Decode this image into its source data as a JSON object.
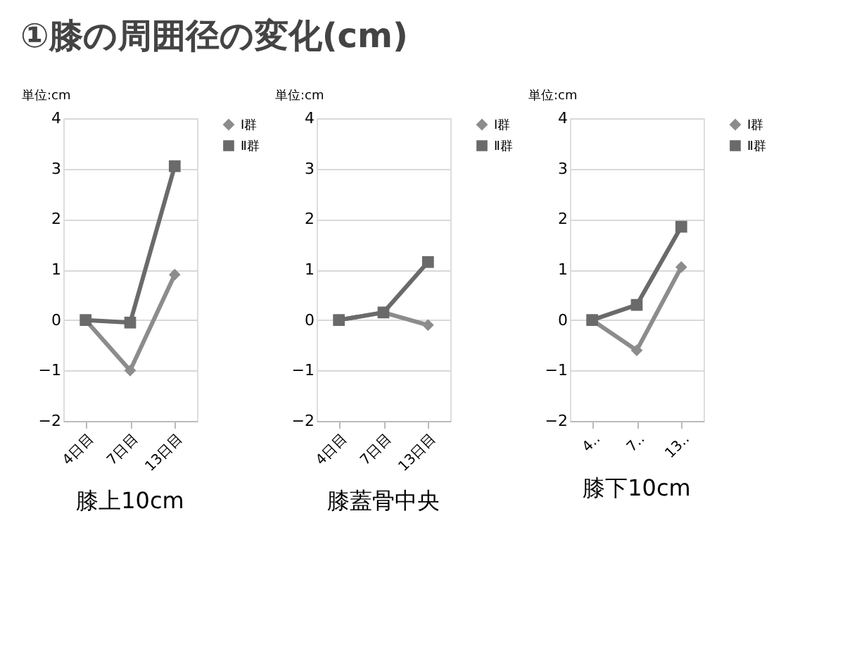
{
  "chart_data": [
    {
      "type": "line",
      "title": "①膝の周囲径の変化(cm)",
      "ylabel": "単位:cm",
      "annotations": [
        "膝上10cm"
      ],
      "categories": [
        "4日目",
        "7日目",
        "13日目"
      ],
      "ylim": [
        -2,
        4
      ],
      "yticks": [
        -2,
        -1,
        0,
        1,
        2,
        3,
        4
      ],
      "grid": "y",
      "legend": "right",
      "series": [
        {
          "name": "Ⅰ群",
          "color": "#8c8c8c",
          "marker": "diamond",
          "values": [
            0,
            -1.0,
            0.9
          ]
        },
        {
          "name": "Ⅱ群",
          "color": "#6a6a6a",
          "marker": "square",
          "values": [
            0,
            -0.05,
            3.05
          ]
        }
      ]
    },
    {
      "type": "line",
      "ylabel": "単位:cm",
      "annotations": [
        "膝蓋骨中央"
      ],
      "categories": [
        "4日目",
        "7日目",
        "13日目"
      ],
      "ylim": [
        -2,
        4
      ],
      "yticks": [
        -2,
        -1,
        0,
        1,
        2,
        3,
        4
      ],
      "grid": "y",
      "legend": "right",
      "series": [
        {
          "name": "Ⅰ群",
          "color": "#8c8c8c",
          "marker": "diamond",
          "values": [
            0,
            0.15,
            -0.1
          ]
        },
        {
          "name": "Ⅱ群",
          "color": "#6a6a6a",
          "marker": "square",
          "values": [
            0,
            0.15,
            1.15
          ]
        }
      ]
    },
    {
      "type": "line",
      "ylabel": "単位:cm",
      "annotations": [
        "膝下10cm"
      ],
      "categories": [
        "4‥",
        "7‥",
        "13‥"
      ],
      "ylim": [
        -2,
        4
      ],
      "yticks": [
        -2,
        -1,
        0,
        1,
        2,
        3,
        4
      ],
      "grid": "y",
      "legend": "right",
      "series": [
        {
          "name": "Ⅰ群",
          "color": "#8c8c8c",
          "marker": "diamond",
          "values": [
            0,
            -0.6,
            1.05
          ]
        },
        {
          "name": "Ⅱ群",
          "color": "#6a6a6a",
          "marker": "square",
          "values": [
            0,
            0.3,
            1.85
          ]
        }
      ]
    }
  ]
}
